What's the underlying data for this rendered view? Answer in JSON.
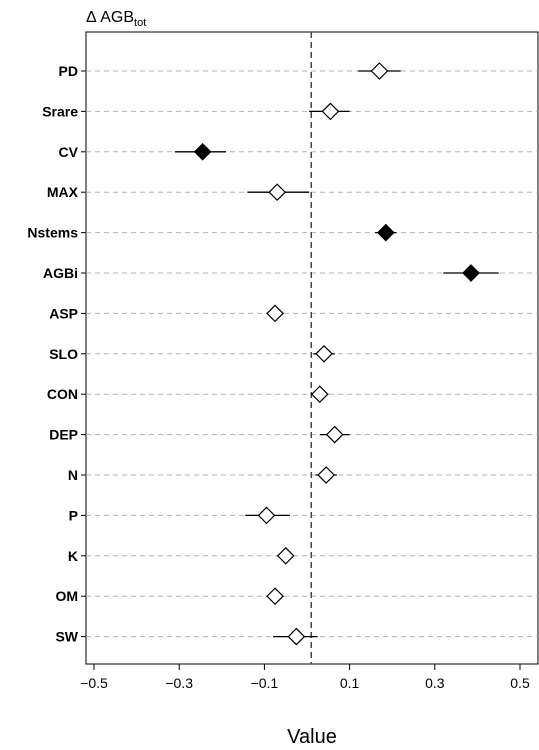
{
  "chart_data": {
    "type": "scatter",
    "title_prefix": "Δ AGB",
    "title_subscript": "tot",
    "xlabel": "Value",
    "xlim": [
      -0.52,
      0.55
    ],
    "xticks": [
      -0.5,
      -0.3,
      -0.1,
      0.1,
      0.3,
      0.5
    ],
    "xtick_labels": [
      "−0.5",
      "−0.3",
      "−0.1",
      "0.1",
      "0.3",
      "0.5"
    ],
    "reference_line": 0.01,
    "grid": "horizontal dashed",
    "points": [
      {
        "label": "PD",
        "value": 0.17,
        "ci": [
          0.12,
          0.22
        ],
        "significant": false
      },
      {
        "label": "Srare",
        "value": 0.055,
        "ci": [
          0.005,
          0.1
        ],
        "significant": false
      },
      {
        "label": "CV",
        "value": -0.245,
        "ci": [
          -0.31,
          -0.19
        ],
        "significant": true
      },
      {
        "label": "MAX",
        "value": -0.07,
        "ci": [
          -0.14,
          0.005
        ],
        "significant": false
      },
      {
        "label": "Nstems",
        "value": 0.185,
        "ci": [
          0.16,
          0.21
        ],
        "significant": true
      },
      {
        "label": "AGBi",
        "value": 0.385,
        "ci": [
          0.32,
          0.45
        ],
        "significant": true
      },
      {
        "label": "ASP",
        "value": -0.075,
        "ci": [
          -0.095,
          -0.055
        ],
        "significant": false
      },
      {
        "label": "SLO",
        "value": 0.04,
        "ci": [
          0.015,
          0.065
        ],
        "significant": false
      },
      {
        "label": "CON",
        "value": 0.03,
        "ci": [
          0.01,
          0.05
        ],
        "significant": false
      },
      {
        "label": "DEP",
        "value": 0.065,
        "ci": [
          0.03,
          0.1
        ],
        "significant": false
      },
      {
        "label": "N",
        "value": 0.045,
        "ci": [
          0.02,
          0.07
        ],
        "significant": false
      },
      {
        "label": "P",
        "value": -0.095,
        "ci": [
          -0.145,
          -0.04
        ],
        "significant": false
      },
      {
        "label": "K",
        "value": -0.05,
        "ci": [
          -0.07,
          -0.03
        ],
        "significant": false
      },
      {
        "label": "OM",
        "value": -0.075,
        "ci": [
          -0.095,
          -0.055
        ],
        "significant": false
      },
      {
        "label": "SW",
        "value": -0.025,
        "ci": [
          -0.08,
          0.025
        ],
        "significant": false
      }
    ]
  }
}
